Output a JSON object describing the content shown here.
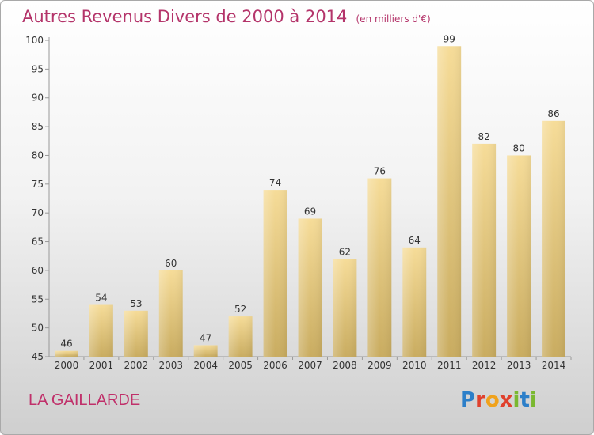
{
  "chart_data": {
    "type": "bar",
    "title": "Autres Revenus Divers de 2000 à 2014",
    "subtitle": "(en milliers d'€)",
    "categories": [
      "2000",
      "2001",
      "2002",
      "2003",
      "2004",
      "2005",
      "2006",
      "2007",
      "2008",
      "2009",
      "2010",
      "2011",
      "2012",
      "2013",
      "2014"
    ],
    "values": [
      46,
      54,
      53,
      60,
      47,
      52,
      74,
      69,
      62,
      76,
      64,
      99,
      82,
      80,
      86
    ],
    "ylim": [
      45,
      100
    ],
    "yticks": [
      45,
      50,
      55,
      60,
      65,
      70,
      75,
      80,
      85,
      90,
      95,
      100
    ],
    "grid": false,
    "colors": {
      "bar_light": "#f6dc98",
      "bar_dark": "#c9ac60",
      "title": "#b4346a"
    }
  },
  "location": "LA GAILLARDE",
  "logo": {
    "text": "Proxiti",
    "letters": [
      "P",
      "r",
      "o",
      "x",
      "i",
      "t",
      "i"
    ]
  }
}
